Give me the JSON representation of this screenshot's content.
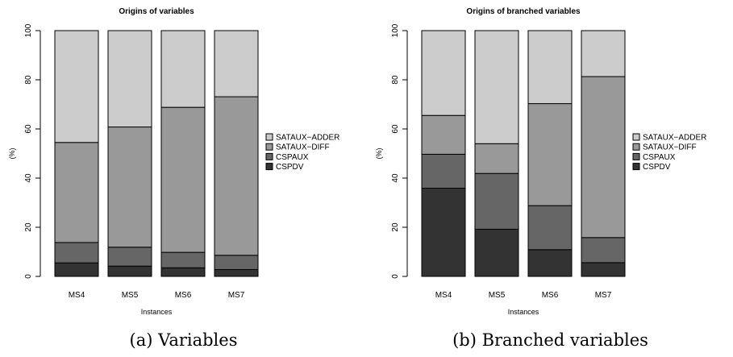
{
  "chart_data": [
    {
      "type": "bar",
      "stacked": true,
      "title": "Origins of variables",
      "xlabel": "Instances",
      "ylabel": "(%)",
      "ylim": [
        0,
        100
      ],
      "yticks": [
        0,
        20,
        40,
        60,
        80,
        100
      ],
      "categories": [
        "MS4",
        "MS5",
        "MS6",
        "MS7"
      ],
      "series": [
        {
          "name": "CSPDV",
          "color": "#333333",
          "values": [
            5.5,
            4.2,
            3.5,
            2.8
          ]
        },
        {
          "name": "CSPAUX",
          "color": "#666666",
          "values": [
            8.3,
            7.7,
            6.3,
            5.8
          ]
        },
        {
          "name": "SATAUX−DIFF",
          "color": "#999999",
          "values": [
            40.7,
            48.9,
            59.0,
            64.5
          ]
        },
        {
          "name": "SATAUX−ADDER",
          "color": "#cccccc",
          "values": [
            45.5,
            39.2,
            31.2,
            26.9
          ]
        }
      ],
      "legend_order": [
        "SATAUX−ADDER",
        "SATAUX−DIFF",
        "CSPAUX",
        "CSPDV"
      ],
      "legend_position": "right",
      "grid": false,
      "caption": "(a) Variables"
    },
    {
      "type": "bar",
      "stacked": true,
      "title": "Origins of branched variables",
      "xlabel": "Instances",
      "ylabel": "(%)",
      "ylim": [
        0,
        100
      ],
      "yticks": [
        0,
        20,
        40,
        60,
        80,
        100
      ],
      "categories": [
        "MS4",
        "MS5",
        "MS6",
        "MS7"
      ],
      "series": [
        {
          "name": "CSPDV",
          "color": "#333333",
          "values": [
            35.9,
            19.2,
            10.9,
            5.6
          ]
        },
        {
          "name": "CSPAUX",
          "color": "#666666",
          "values": [
            13.8,
            22.7,
            17.9,
            10.2
          ]
        },
        {
          "name": "SATAUX−DIFF",
          "color": "#999999",
          "values": [
            15.8,
            12.1,
            41.5,
            65.5
          ]
        },
        {
          "name": "SATAUX−ADDER",
          "color": "#cccccc",
          "values": [
            34.5,
            46.0,
            29.7,
            18.7
          ]
        }
      ],
      "legend_order": [
        "SATAUX−ADDER",
        "SATAUX−DIFF",
        "CSPAUX",
        "CSPDV"
      ],
      "legend_position": "right",
      "grid": false,
      "caption": "(b) Branched variables"
    }
  ]
}
